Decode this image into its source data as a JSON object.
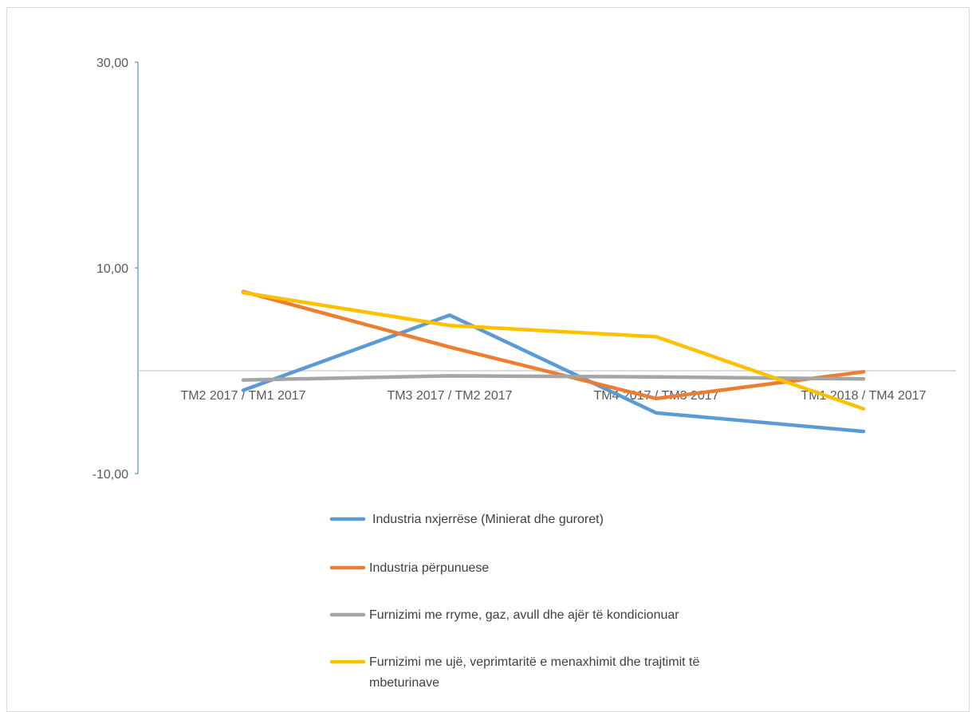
{
  "chart_data": {
    "type": "line",
    "title": "",
    "xlabel": "",
    "ylabel": "",
    "categories": [
      "TM2 2017 / TM1 2017",
      "TM3 2017 / TM2 2017",
      "TM4 2017 / TM3 2017",
      "TM1 2018 / TM4 2017"
    ],
    "y_ticks": [
      {
        "value": 30,
        "label": "30,00"
      },
      {
        "value": 10,
        "label": "10,00"
      },
      {
        "value": -10,
        "label": "-10,00"
      }
    ],
    "ylim": [
      -10,
      30
    ],
    "grid": false,
    "legend_position": "bottom",
    "series": [
      {
        "name": "Industria nxjerrëse (Minierat dhe guroret)",
        "color": "#5b9bd5",
        "values": [
          -1.9,
          5.4,
          -4.1,
          -5.9
        ]
      },
      {
        "name": "Industria përpunuese",
        "color": "#ed7d31",
        "values": [
          7.7,
          2.3,
          -2.7,
          -0.1
        ]
      },
      {
        "name": "Furnizimi me rryme, gaz, avull dhe ajër të kondicionuar",
        "color": "#a5a5a5",
        "values": [
          -0.9,
          -0.5,
          -0.6,
          -0.8
        ]
      },
      {
        "name": "Furnizimi me ujë, veprimtaritë e menaxhimit dhe trajtimit të mbeturinave",
        "name_lines": [
          "Furnizimi me ujë, veprimtaritë e menaxhimit dhe trajtimit të",
          "mbeturinave"
        ],
        "color": "#ffc000",
        "values": [
          7.6,
          4.4,
          3.3,
          -3.7
        ]
      }
    ]
  }
}
